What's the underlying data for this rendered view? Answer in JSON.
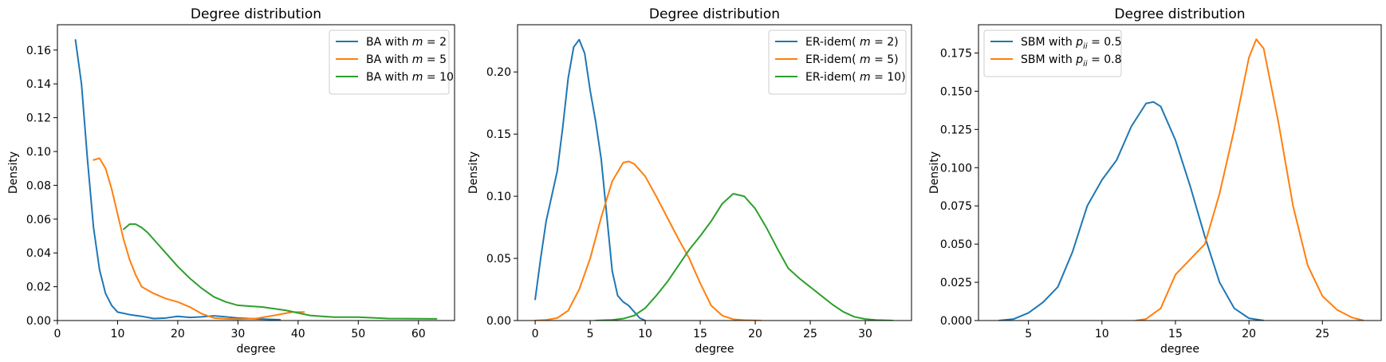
{
  "colors": {
    "blue": "#1f77b4",
    "orange": "#ff7f0e",
    "green": "#2ca02c"
  },
  "chart_data": [
    {
      "type": "line",
      "title": "Degree distribution",
      "xlabel": "degree",
      "ylabel": "Density",
      "xlim": [
        0,
        66
      ],
      "ylim": [
        0,
        0.175
      ],
      "xticks": [
        0,
        10,
        20,
        30,
        40,
        50,
        60
      ],
      "yticks": [
        0.0,
        0.02,
        0.04,
        0.06,
        0.08,
        0.1,
        0.12,
        0.14,
        0.16
      ],
      "ytick_labels": [
        "0.00",
        "0.02",
        "0.04",
        "0.06",
        "0.08",
        "0.10",
        "0.12",
        "0.14",
        "0.16"
      ],
      "legend_position": "top-right",
      "series": [
        {
          "name": "BA with",
          "math_main": "m",
          "math_sub": "",
          "math_tail": " = 2",
          "color": "#1f77b4",
          "x": [
            3,
            4,
            5,
            6,
            7,
            8,
            9,
            10,
            12,
            14,
            16,
            18,
            20,
            22,
            24,
            26,
            28,
            30,
            33,
            37
          ],
          "y": [
            0.166,
            0.14,
            0.095,
            0.055,
            0.03,
            0.016,
            0.009,
            0.005,
            0.0035,
            0.0025,
            0.0012,
            0.0015,
            0.0025,
            0.0018,
            0.0022,
            0.0028,
            0.0022,
            0.0015,
            0.001,
            0.0005
          ]
        },
        {
          "name": "BA with",
          "math_main": "m",
          "math_sub": "",
          "math_tail": " = 5",
          "color": "#ff7f0e",
          "x": [
            6,
            7,
            8,
            9,
            10,
            11,
            12,
            13,
            14,
            16,
            18,
            20,
            22,
            24,
            26,
            28,
            30,
            33,
            36,
            39,
            41
          ],
          "y": [
            0.095,
            0.096,
            0.09,
            0.078,
            0.063,
            0.048,
            0.036,
            0.027,
            0.02,
            0.016,
            0.013,
            0.011,
            0.008,
            0.004,
            0.0015,
            0.001,
            0.0008,
            0.0012,
            0.003,
            0.005,
            0.005
          ]
        },
        {
          "name": "BA with",
          "math_main": "m",
          "math_sub": "",
          "math_tail": " = 10",
          "color": "#2ca02c",
          "x": [
            11,
            12,
            13,
            14,
            15,
            16,
            18,
            20,
            22,
            24,
            26,
            28,
            30,
            32,
            34,
            36,
            38,
            40,
            42,
            44,
            46,
            50,
            55,
            63
          ],
          "y": [
            0.054,
            0.057,
            0.057,
            0.055,
            0.052,
            0.048,
            0.04,
            0.032,
            0.025,
            0.019,
            0.014,
            0.011,
            0.009,
            0.0085,
            0.008,
            0.007,
            0.006,
            0.0045,
            0.003,
            0.0025,
            0.002,
            0.002,
            0.0012,
            0.001
          ]
        }
      ]
    },
    {
      "type": "line",
      "title": "Degree distribution",
      "xlabel": "degree",
      "ylabel": "Density",
      "xlim": [
        -1.6,
        34.2
      ],
      "ylim": [
        0,
        0.238
      ],
      "xticks": [
        0,
        5,
        10,
        15,
        20,
        25,
        30
      ],
      "yticks": [
        0.0,
        0.05,
        0.1,
        0.15,
        0.2
      ],
      "ytick_labels": [
        "0.00",
        "0.05",
        "0.10",
        "0.15",
        "0.20"
      ],
      "legend_position": "top-right",
      "series": [
        {
          "name": "ER-idem(",
          "math_main": "m",
          "math_sub": "",
          "math_tail": " = 2)",
          "color": "#1f77b4",
          "x": [
            0,
            0.5,
            1,
            1.5,
            2,
            2.5,
            3,
            3.5,
            4,
            4.5,
            5,
            5.5,
            6,
            6.5,
            7,
            7.5,
            8,
            8.5,
            9,
            9.5,
            10
          ],
          "y": [
            0.017,
            0.05,
            0.08,
            0.1,
            0.12,
            0.155,
            0.195,
            0.22,
            0.226,
            0.215,
            0.185,
            0.16,
            0.13,
            0.085,
            0.04,
            0.02,
            0.015,
            0.012,
            0.007,
            0.002,
            0.0
          ]
        },
        {
          "name": "ER-idem(",
          "math_main": "m",
          "math_sub": "",
          "math_tail": " = 5)",
          "color": "#ff7f0e",
          "x": [
            0,
            1,
            2,
            3,
            4,
            5,
            6,
            7,
            8,
            8.5,
            9,
            10,
            11,
            12,
            13,
            14,
            15,
            16,
            17,
            18,
            19,
            20.5
          ],
          "y": [
            0.0,
            0.0005,
            0.002,
            0.008,
            0.025,
            0.05,
            0.083,
            0.112,
            0.127,
            0.128,
            0.126,
            0.116,
            0.1,
            0.083,
            0.066,
            0.05,
            0.03,
            0.012,
            0.004,
            0.001,
            0.0003,
            0.0
          ]
        },
        {
          "name": "ER-idem(",
          "math_main": "m",
          "math_sub": "",
          "math_tail": " = 10)",
          "color": "#2ca02c",
          "x": [
            5.5,
            7,
            8,
            9,
            10,
            11,
            12,
            13,
            14,
            15,
            16,
            17,
            18,
            19,
            20,
            21,
            22,
            23,
            24,
            25,
            26,
            27,
            28,
            29,
            30,
            31,
            32.5
          ],
          "y": [
            0.0,
            0.0005,
            0.0015,
            0.004,
            0.01,
            0.02,
            0.031,
            0.044,
            0.057,
            0.068,
            0.08,
            0.094,
            0.102,
            0.1,
            0.09,
            0.075,
            0.058,
            0.042,
            0.034,
            0.027,
            0.02,
            0.013,
            0.007,
            0.003,
            0.0012,
            0.0004,
            0.0
          ]
        }
      ]
    },
    {
      "type": "line",
      "title": "Degree distribution",
      "xlabel": "degree",
      "ylabel": "Density",
      "xlim": [
        1.6,
        29.0
      ],
      "ylim": [
        0,
        0.1935
      ],
      "xticks": [
        5,
        10,
        15,
        20,
        25
      ],
      "yticks": [
        0.0,
        0.025,
        0.05,
        0.075,
        0.1,
        0.125,
        0.15,
        0.175
      ],
      "ytick_labels": [
        "0.000",
        "0.025",
        "0.050",
        "0.075",
        "0.100",
        "0.125",
        "0.150",
        "0.175"
      ],
      "legend_position": "top-left",
      "series": [
        {
          "name": "SBM with",
          "math_main": "p",
          "math_sub": "ii",
          "math_tail": " = 0.5",
          "color": "#1f77b4",
          "x": [
            3,
            4,
            5,
            6,
            7,
            8,
            9,
            10,
            11,
            12,
            13,
            13.5,
            14,
            15,
            16,
            17,
            18,
            19,
            20,
            21
          ],
          "y": [
            0.0,
            0.001,
            0.005,
            0.012,
            0.022,
            0.045,
            0.075,
            0.092,
            0.105,
            0.127,
            0.142,
            0.143,
            0.14,
            0.118,
            0.088,
            0.055,
            0.025,
            0.008,
            0.0015,
            0.0
          ]
        },
        {
          "name": "SBM with",
          "math_main": "p",
          "math_sub": "ii",
          "math_tail": " = 0.8",
          "color": "#ff7f0e",
          "x": [
            12.3,
            13,
            14,
            15,
            16,
            17,
            18,
            19,
            20,
            20.5,
            21,
            22,
            23,
            24,
            25,
            26,
            27,
            27.8
          ],
          "y": [
            0.0,
            0.001,
            0.008,
            0.03,
            0.04,
            0.05,
            0.083,
            0.125,
            0.172,
            0.184,
            0.178,
            0.13,
            0.075,
            0.036,
            0.016,
            0.007,
            0.002,
            0.0
          ]
        }
      ]
    }
  ]
}
